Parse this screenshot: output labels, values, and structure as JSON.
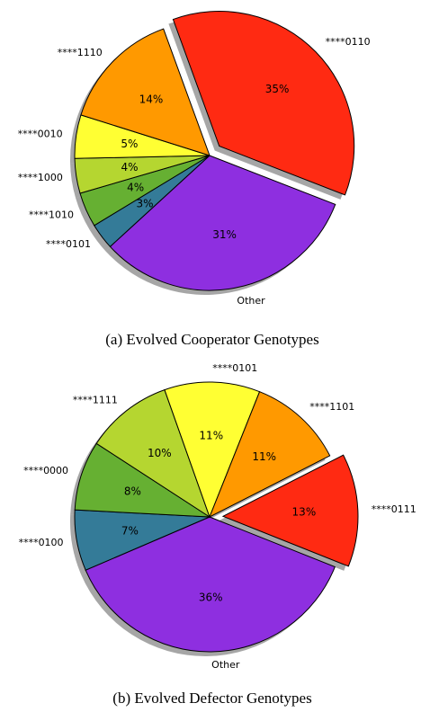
{
  "chart_data": [
    {
      "type": "pie",
      "title": "(a) Evolved Cooperator Genotypes",
      "categories": [
        "****0110",
        "Other",
        "****0101",
        "****1010",
        "****1000",
        "****0010",
        "****1110"
      ],
      "values": [
        35,
        31,
        3,
        4,
        4,
        5,
        14
      ],
      "value_labels": [
        "35%",
        "31%",
        "3%",
        "4%",
        "4%",
        "5%",
        "14%"
      ],
      "colors": [
        "#ff2a12",
        "#8e2fe0",
        "#347b98",
        "#66b032",
        "#b5d630",
        "#ffff33",
        "#ff9900"
      ],
      "explode": "****0110",
      "startangle": 110,
      "shadow": true
    },
    {
      "type": "pie",
      "title": "(b) Evolved Defector Genotypes",
      "categories": [
        "****0111",
        "Other",
        "****0100",
        "****0000",
        "****1111",
        "****0101",
        "****1101"
      ],
      "values": [
        13,
        36,
        7,
        8,
        10,
        11,
        11
      ],
      "value_labels": [
        "13%",
        "36%",
        "7%",
        "8%",
        "10%",
        "11%",
        "11%"
      ],
      "colors": [
        "#ff2a12",
        "#8e2fe0",
        "#347b98",
        "#66b032",
        "#b5d630",
        "#ffff33",
        "#ff9900"
      ],
      "explode": "****0111",
      "startangle": 27,
      "shadow": true
    }
  ]
}
